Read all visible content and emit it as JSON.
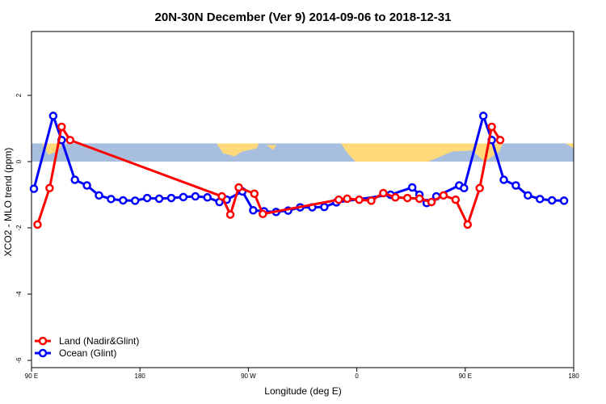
{
  "chart_data": {
    "type": "line",
    "title": "20N-30N December (Ver 9)   2014-09-06 to 2018-12-31",
    "xlabel": "Longitude (deg E)",
    "ylabel": "XCO2 - MLO trend (ppm)",
    "xlim": [
      90,
      540
    ],
    "ylim": [
      -6,
      4
    ],
    "x_ticks": [
      {
        "value": 90,
        "label": "90 E"
      },
      {
        "value": 180,
        "label": "180"
      },
      {
        "value": 270,
        "label": "90 W"
      },
      {
        "value": 360,
        "label": "0"
      },
      {
        "value": 450,
        "label": "90 E"
      },
      {
        "value": 540,
        "label": "180"
      }
    ],
    "y_ticks": [
      {
        "value": -6,
        "label": "-6"
      },
      {
        "value": -4,
        "label": "-4"
      },
      {
        "value": -2,
        "label": "-2"
      },
      {
        "value": 0,
        "label": "0"
      },
      {
        "value": 2,
        "label": "2"
      }
    ],
    "map_band": {
      "y_range": [
        0,
        0.55
      ],
      "ocean_color": "#a8bedf",
      "land_color": "#ffd97a"
    },
    "legend_position": "bottom-left",
    "series": [
      {
        "name": "Land (Nadir&Glint)",
        "color": "#ff0000",
        "points": [
          [
            95,
            -1.9
          ],
          [
            105,
            -0.8
          ],
          [
            115,
            1.05
          ],
          [
            122,
            0.65
          ],
          [
            248,
            -1.05
          ],
          [
            255,
            -1.6
          ],
          [
            262,
            -0.78
          ],
          [
            275,
            -0.97
          ],
          [
            282,
            -1.58
          ],
          [
            345,
            -1.15
          ],
          [
            352,
            -1.12
          ],
          [
            362,
            -1.15
          ],
          [
            372,
            -1.18
          ],
          [
            382,
            -0.95
          ],
          [
            392,
            -1.08
          ],
          [
            402,
            -1.1
          ],
          [
            412,
            -1.12
          ],
          [
            422,
            -1.22
          ],
          [
            432,
            -1.02
          ],
          [
            442,
            -1.15
          ],
          [
            452,
            -1.9
          ],
          [
            462,
            -0.8
          ],
          [
            472,
            1.05
          ],
          [
            479,
            0.65
          ]
        ]
      },
      {
        "name": "Ocean (Glint)",
        "color": "#0000ff",
        "points": [
          [
            92,
            -0.82
          ],
          [
            108,
            1.38
          ],
          [
            115,
            0.65
          ],
          [
            126,
            -0.55
          ],
          [
            136,
            -0.72
          ],
          [
            146,
            -1.02
          ],
          [
            156,
            -1.13
          ],
          [
            166,
            -1.17
          ],
          [
            176,
            -1.18
          ],
          [
            186,
            -1.1
          ],
          [
            196,
            -1.12
          ],
          [
            206,
            -1.1
          ],
          [
            216,
            -1.07
          ],
          [
            226,
            -1.05
          ],
          [
            236,
            -1.08
          ],
          [
            246,
            -1.22
          ],
          [
            252,
            -1.15
          ],
          [
            265,
            -0.9
          ],
          [
            274,
            -1.47
          ],
          [
            283,
            -1.5
          ],
          [
            293,
            -1.52
          ],
          [
            303,
            -1.48
          ],
          [
            313,
            -1.38
          ],
          [
            323,
            -1.38
          ],
          [
            333,
            -1.37
          ],
          [
            343,
            -1.23
          ],
          [
            388,
            -1.0
          ],
          [
            406,
            -0.78
          ],
          [
            412,
            -1.0
          ],
          [
            418,
            -1.25
          ],
          [
            426,
            -1.05
          ],
          [
            445,
            -0.72
          ],
          [
            449,
            -0.8
          ],
          [
            465,
            1.38
          ],
          [
            472,
            0.65
          ],
          [
            482,
            -0.55
          ],
          [
            492,
            -0.72
          ],
          [
            502,
            -1.02
          ],
          [
            512,
            -1.13
          ],
          [
            522,
            -1.17
          ],
          [
            532,
            -1.18
          ]
        ]
      }
    ]
  }
}
